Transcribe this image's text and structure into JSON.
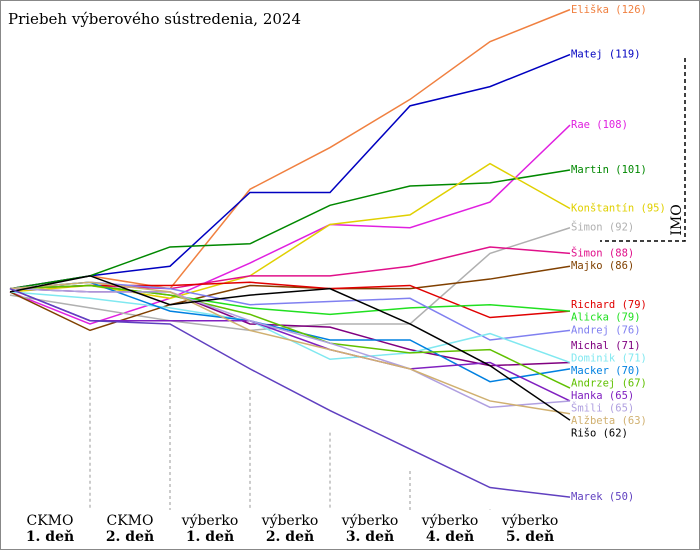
{
  "chart_data": {
    "type": "line",
    "title": "Priebeh výberového sústredenia, 2024",
    "categories": [
      null,
      "CKMO",
      "CKMO",
      "výberko",
      "výberko",
      "výberko",
      "výberko",
      "výberko"
    ],
    "category_days": [
      null,
      "1. deň",
      "2. deň",
      "1. deň",
      "2. deň",
      "3. deň",
      "4. deň",
      "5. deň"
    ],
    "ylim": [
      48,
      127.5
    ],
    "bracket_label": "IMO",
    "series": [
      {
        "name": "Eliška (126)",
        "color": "#f08040",
        "values": [
          82.5,
          84.5,
          82.5,
          98,
          104.5,
          112,
          121,
          126
        ]
      },
      {
        "name": "Matej (119)",
        "color": "#0000c0",
        "values": [
          82.5,
          84.5,
          86,
          97.5,
          97.5,
          111,
          114,
          119
        ]
      },
      {
        "name": "Rae (108)",
        "color": "#e020e0",
        "values": [
          82,
          77,
          81,
          86.5,
          92.5,
          92,
          96,
          108
        ]
      },
      {
        "name": "Martin (101)",
        "color": "#008800",
        "values": [
          82.5,
          84.5,
          89,
          89.5,
          95.5,
          98.5,
          99,
          101
        ]
      },
      {
        "name": "Konštantín (95)",
        "color": "#e0d000",
        "values": [
          82,
          83,
          81,
          84.5,
          92.5,
          94,
          102,
          95
        ]
      },
      {
        "name": "Šimon (92)",
        "color": "#b0b0b0",
        "values": [
          81.5,
          79.5,
          77.5,
          76,
          77,
          77,
          88,
          92
        ]
      },
      {
        "name": "Šimon (88)",
        "color": "#e0108a",
        "values": [
          82.5,
          83,
          82.5,
          84.5,
          84.5,
          86,
          89,
          88
        ]
      },
      {
        "name": "Majko (86)",
        "color": "#804000",
        "values": [
          82,
          76,
          80,
          83,
          82.5,
          82.5,
          84,
          86
        ]
      },
      {
        "name": "Richard (79)",
        "color": "#e00000",
        "values": [
          82.5,
          83,
          83,
          83.5,
          82.5,
          83,
          78,
          79
        ]
      },
      {
        "name": "Alicka (79)",
        "color": "#20e020",
        "values": [
          82.5,
          83,
          81.5,
          79.5,
          78.5,
          79.5,
          80,
          79
        ]
      },
      {
        "name": "Andrej (76)",
        "color": "#8080f0",
        "values": [
          82.5,
          83.5,
          82.5,
          80,
          80.5,
          81,
          74.5,
          76
        ]
      },
      {
        "name": "Michal (71)",
        "color": "#800080",
        "values": [
          82.5,
          82,
          82,
          77,
          76.5,
          73,
          70.5,
          71
        ]
      },
      {
        "name": "Dominik (71)",
        "color": "#80e8f0",
        "values": [
          82,
          81,
          79.5,
          77.5,
          71.5,
          72.5,
          75.5,
          71
        ]
      },
      {
        "name": "Macker (70)",
        "color": "#0080e0",
        "values": [
          82.5,
          83.5,
          79,
          77.5,
          74.5,
          74.5,
          68,
          70
        ]
      },
      {
        "name": "Andrzej (67)",
        "color": "#60c000",
        "values": [
          82.5,
          83,
          81.5,
          78.5,
          74,
          72.5,
          73,
          67
        ]
      },
      {
        "name": "Hanka (65)",
        "color": "#8020c0",
        "values": [
          82.5,
          77.5,
          77.5,
          77.5,
          73,
          70,
          71,
          65
        ]
      },
      {
        "name": "Šmili (65)",
        "color": "#b0a0e0",
        "values": [
          82.5,
          82,
          82,
          77.5,
          74,
          70,
          64,
          65
        ]
      },
      {
        "name": "Alžbeta (63)",
        "color": "#d0b070",
        "values": [
          82.5,
          83.5,
          82,
          76,
          73,
          70,
          65,
          63
        ]
      },
      {
        "name": "Rišo (62)",
        "color": "#000000",
        "values": [
          82,
          84.5,
          80,
          81.5,
          82.5,
          77,
          70.5,
          62
        ]
      },
      {
        "name": "Marek (50)",
        "color": "#6040c0",
        "values": [
          82.5,
          77.5,
          77,
          70,
          63.5,
          57.5,
          51.5,
          50
        ]
      }
    ]
  }
}
